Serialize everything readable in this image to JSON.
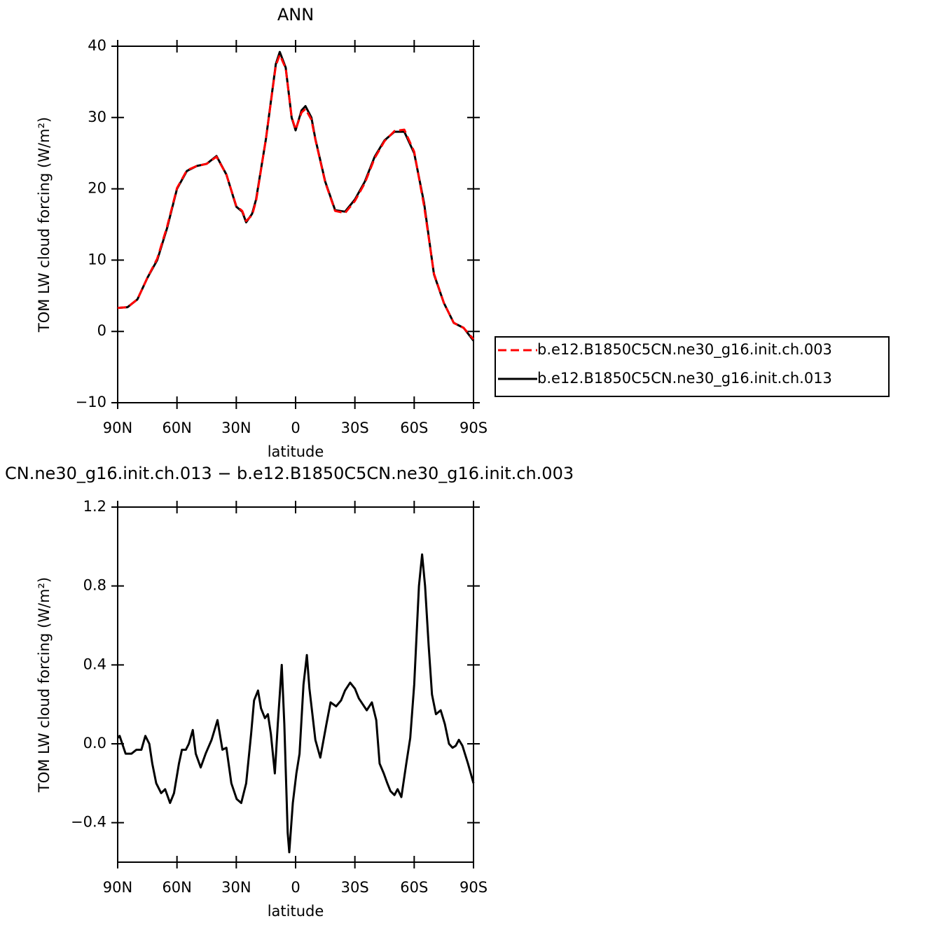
{
  "chart_data": [
    {
      "type": "line",
      "title": "ANN",
      "x_label": "latitude",
      "y_label": "TOM LW cloud forcing (W/m²)",
      "x": [
        90,
        85,
        80,
        75,
        70,
        65,
        60,
        55,
        50,
        45,
        40,
        35,
        30,
        27,
        25,
        22,
        20,
        15,
        10,
        8,
        5,
        2,
        0,
        -3,
        -5,
        -8,
        -10,
        -15,
        -20,
        -25,
        -30,
        -35,
        -40,
        -45,
        -50,
        -55,
        -60,
        -65,
        -70,
        -75,
        -80,
        -85,
        -90
      ],
      "series": [
        {
          "name": "b.e12.B1850C5CN.ne30_g16.init.ch.003",
          "color": "#ff0000",
          "line_style": "dashed",
          "values": [
            3.3,
            3.4,
            4.5,
            7.5,
            10.2,
            14.7,
            20.1,
            22.6,
            23.2,
            23.5,
            24.5,
            22.0,
            17.6,
            16.9,
            15.5,
            16.3,
            18.3,
            27.0,
            37.3,
            38.8,
            36.9,
            30.1,
            28.3,
            30.7,
            31.2,
            29.7,
            26.9,
            20.9,
            16.9,
            16.6,
            18.3,
            20.8,
            24.3,
            26.7,
            28.1,
            28.3,
            25.2,
            17.6,
            8.1,
            4.0,
            1.2,
            0.5,
            -1.1
          ]
        },
        {
          "name": "b.e12.B1850C5CN.ne30_g16.init.ch.013",
          "color": "#000000",
          "line_style": "solid",
          "values": [
            3.3,
            3.4,
            4.5,
            7.5,
            10.0,
            14.5,
            20.0,
            22.5,
            23.2,
            23.5,
            24.6,
            22.0,
            17.5,
            16.8,
            15.3,
            16.5,
            18.5,
            27.0,
            37.5,
            39.2,
            37.0,
            30.0,
            28.2,
            31.0,
            31.6,
            30.0,
            27.0,
            21.0,
            17.0,
            16.8,
            18.5,
            21.0,
            24.5,
            26.8,
            28.0,
            28.0,
            25.0,
            18.0,
            8.0,
            4.0,
            1.2,
            0.5,
            -1.3
          ]
        }
      ],
      "xlim": [
        90,
        -90
      ],
      "xticks": [
        {
          "value": 90,
          "label": "90N"
        },
        {
          "value": 60,
          "label": "60N"
        },
        {
          "value": 30,
          "label": "30N"
        },
        0,
        {
          "value": -30,
          "label": "30S"
        },
        {
          "value": -60,
          "label": "60S"
        },
        {
          "value": -90,
          "label": "90S"
        }
      ],
      "ylim": [
        -10,
        40
      ],
      "yticks": [
        {
          "value": -10,
          "label": "−10"
        },
        0,
        10,
        20,
        30,
        40
      ],
      "legend": "right"
    },
    {
      "type": "line",
      "title": "CN.ne30_g16.init.ch.013 − b.e12.B1850C5CN.ne30_g16.init.ch.003",
      "x_label": "latitude",
      "y_label": "TOM LW cloud forcing (W/m²)",
      "x": [
        90,
        89,
        86,
        83,
        80.5,
        78,
        76,
        74,
        72.5,
        70.5,
        68,
        66,
        63.5,
        61.5,
        59,
        57.5,
        55.5,
        54,
        52,
        50.5,
        48,
        45.5,
        42.5,
        39.5,
        37,
        35,
        32.5,
        29.8,
        27.5,
        25,
        22.5,
        21,
        19,
        17.5,
        15.5,
        14,
        12.5,
        10.5,
        9,
        7,
        5.7,
        4,
        3.2,
        1.4,
        -0.4,
        -2,
        -4,
        -5.7,
        -7,
        -10,
        -12.5,
        -15.6,
        -17.7,
        -20.5,
        -23,
        -25,
        -27.6,
        -30,
        -32,
        -34,
        -36,
        -38.6,
        -40.8,
        -42.5,
        -44.6,
        -46.4,
        -48,
        -50,
        -51.6,
        -53.5,
        -56,
        -58,
        -60,
        -62.4,
        -64,
        -65.5,
        -67.3,
        -69,
        -71,
        -73.4,
        -75.5,
        -77.6,
        -79.4,
        -81,
        -82.6,
        -84.4,
        -87.2,
        -90
      ],
      "series": [
        {
          "name": null,
          "color": "#000000",
          "line_style": "solid",
          "values": [
            0.03,
            0.04,
            -0.05,
            -0.05,
            -0.03,
            -0.03,
            0.04,
            0.0,
            -0.1,
            -0.2,
            -0.25,
            -0.23,
            -0.3,
            -0.25,
            -0.1,
            -0.03,
            -0.03,
            0.0,
            0.07,
            -0.05,
            -0.12,
            -0.05,
            0.02,
            0.12,
            -0.03,
            -0.02,
            -0.2,
            -0.28,
            -0.3,
            -0.2,
            0.05,
            0.22,
            0.27,
            0.18,
            0.13,
            0.15,
            0.05,
            -0.15,
            0.1,
            0.4,
            0.1,
            -0.45,
            -0.55,
            -0.3,
            -0.15,
            -0.05,
            0.3,
            0.45,
            0.28,
            0.02,
            -0.07,
            0.1,
            0.21,
            0.19,
            0.22,
            0.27,
            0.31,
            0.28,
            0.23,
            0.2,
            0.17,
            0.21,
            0.12,
            -0.1,
            -0.15,
            -0.2,
            -0.24,
            -0.26,
            -0.23,
            -0.27,
            -0.1,
            0.03,
            0.3,
            0.8,
            0.96,
            0.8,
            0.5,
            0.25,
            0.15,
            0.17,
            0.1,
            0.0,
            -0.02,
            -0.01,
            0.02,
            -0.01,
            -0.1,
            -0.2
          ]
        }
      ],
      "xlim": [
        90,
        -90
      ],
      "xticks": [
        {
          "value": 90,
          "label": "90N"
        },
        {
          "value": 60,
          "label": "60N"
        },
        {
          "value": 30,
          "label": "30N"
        },
        0,
        {
          "value": -30,
          "label": "30S"
        },
        {
          "value": -60,
          "label": "60S"
        },
        {
          "value": -90,
          "label": "90S"
        }
      ],
      "ylim": [
        -0.6,
        1.2
      ],
      "yticks": [
        {
          "value": -0.4,
          "label": "−0.4"
        },
        {
          "value": 0,
          "label": "0.0"
        },
        0.4,
        0.8,
        1.2
      ]
    }
  ]
}
